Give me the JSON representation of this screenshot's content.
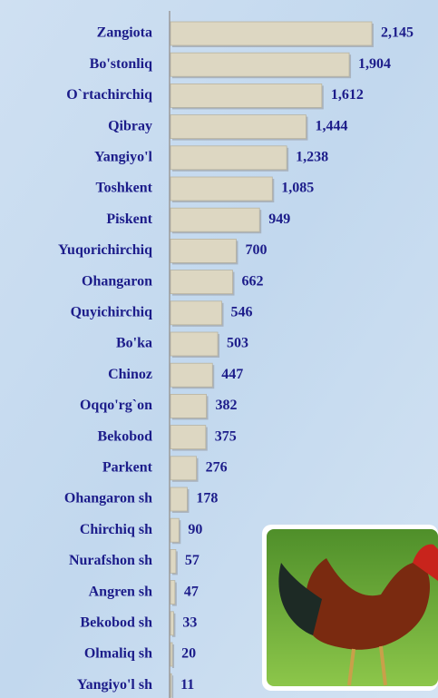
{
  "chart_data": {
    "type": "bar",
    "orientation": "horizontal",
    "categories": [
      "Zangiota",
      "Bo'stonliq",
      "O`rtachirchiq",
      "Qibray",
      "Yangiyo'l",
      "Toshkent",
      "Piskent",
      "Yuqorichirchiq",
      "Ohangaron",
      "Quyichirchiq",
      "Bo'ka",
      "Chinoz",
      "Oqqo'rg`on",
      "Bekobod",
      "Parkent",
      "Ohangaron sh",
      "Chirchiq sh",
      "Nurafshon sh",
      "Angren sh",
      "Bekobod sh",
      "Olmaliq sh",
      "Yangiyo'l sh"
    ],
    "values": [
      2145,
      1904,
      1612,
      1444,
      1238,
      1085,
      949,
      700,
      662,
      546,
      503,
      447,
      382,
      375,
      276,
      178,
      90,
      57,
      47,
      33,
      20,
      11
    ],
    "value_labels": [
      "2,145",
      "1,904",
      "1,612",
      "1,444",
      "1,238",
      "1,085",
      "949",
      "700",
      "662",
      "546",
      "503",
      "447",
      "382",
      "375",
      "276",
      "178",
      "90",
      "57",
      "47",
      "33",
      "20",
      "11"
    ],
    "color": "#ddd7c2"
  }
}
